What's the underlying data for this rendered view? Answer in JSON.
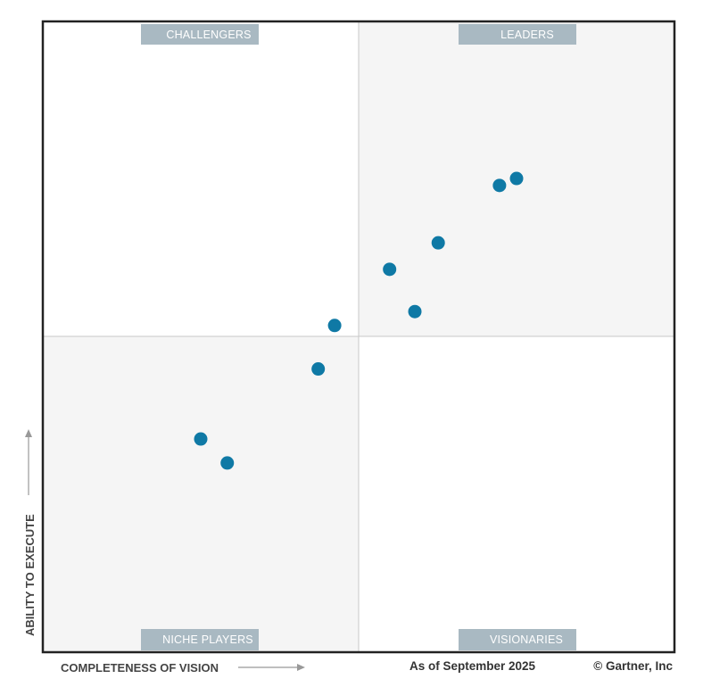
{
  "chart_data": {
    "type": "scatter",
    "title": "",
    "xlabel": "COMPLETENESS OF VISION",
    "ylabel": "ABILITY TO EXECUTE",
    "xlim": [
      0,
      100
    ],
    "ylim": [
      0,
      100
    ],
    "grid": false,
    "quadrants": {
      "top_left": "CHALLENGERS",
      "top_right": "LEADERS",
      "bottom_left": "NICHE PLAYERS",
      "bottom_right": "VISIONARIES"
    },
    "points": [
      {
        "x": 72.3,
        "y": 74.0
      },
      {
        "x": 75.0,
        "y": 75.1
      },
      {
        "x": 62.6,
        "y": 64.9
      },
      {
        "x": 54.9,
        "y": 60.7
      },
      {
        "x": 58.9,
        "y": 54.0
      },
      {
        "x": 46.2,
        "y": 51.8
      },
      {
        "x": 43.6,
        "y": 44.9
      },
      {
        "x": 25.0,
        "y": 33.8
      },
      {
        "x": 29.2,
        "y": 30.0
      }
    ],
    "date_note": "As of September 2025",
    "copyright": "© Gartner, Inc",
    "colors": {
      "point": "#0f79a5",
      "shaded_quadrant": "#f5f5f5",
      "label_box": "#a9b9c2",
      "frame": "#222222"
    }
  }
}
